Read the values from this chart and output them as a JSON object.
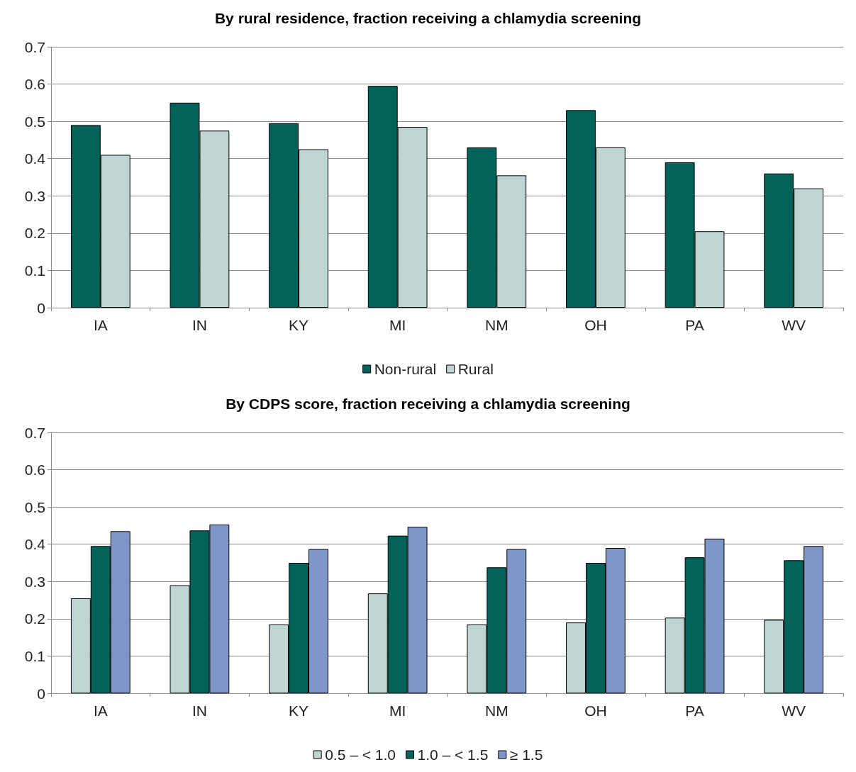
{
  "chart_data": [
    {
      "type": "bar",
      "title": "By rural residence, fraction receiving a chlamydia screening",
      "categories": [
        "IA",
        "IN",
        "KY",
        "MI",
        "NM",
        "OH",
        "PA",
        "WV"
      ],
      "series": [
        {
          "name": "Non-rural",
          "color": "#006258",
          "values": [
            0.49,
            0.55,
            0.495,
            0.595,
            0.43,
            0.53,
            0.39,
            0.36
          ]
        },
        {
          "name": "Rural",
          "color": "#bfd5d3",
          "values": [
            0.41,
            0.475,
            0.425,
            0.485,
            0.355,
            0.43,
            0.205,
            0.32
          ]
        }
      ],
      "ylim": [
        0,
        0.7
      ],
      "yticks": [
        0,
        0.1,
        0.2,
        0.3,
        0.4,
        0.5,
        0.6,
        0.7
      ],
      "grid": "y",
      "legend": "bottom"
    },
    {
      "type": "bar",
      "title": "By CDPS score, fraction receiving a chlamydia screening",
      "categories": [
        "IA",
        "IN",
        "KY",
        "MI",
        "NM",
        "OH",
        "PA",
        "WV"
      ],
      "series": [
        {
          "name": "0.5 – < 1.0",
          "color": "#bfd5d3",
          "values": [
            0.255,
            0.29,
            0.185,
            0.268,
            0.185,
            0.19,
            0.203,
            0.197
          ]
        },
        {
          "name": "1.0 – < 1.5",
          "color": "#006258",
          "values": [
            0.395,
            0.437,
            0.35,
            0.423,
            0.338,
            0.35,
            0.365,
            0.357
          ]
        },
        {
          "name": "≥ 1.5",
          "color": "#7f96c8",
          "values": [
            0.435,
            0.453,
            0.387,
            0.447,
            0.387,
            0.39,
            0.415,
            0.395
          ]
        }
      ],
      "ylim": [
        0,
        0.7
      ],
      "yticks": [
        0,
        0.1,
        0.2,
        0.3,
        0.4,
        0.5,
        0.6,
        0.7
      ],
      "grid": "y",
      "legend": "bottom"
    }
  ]
}
